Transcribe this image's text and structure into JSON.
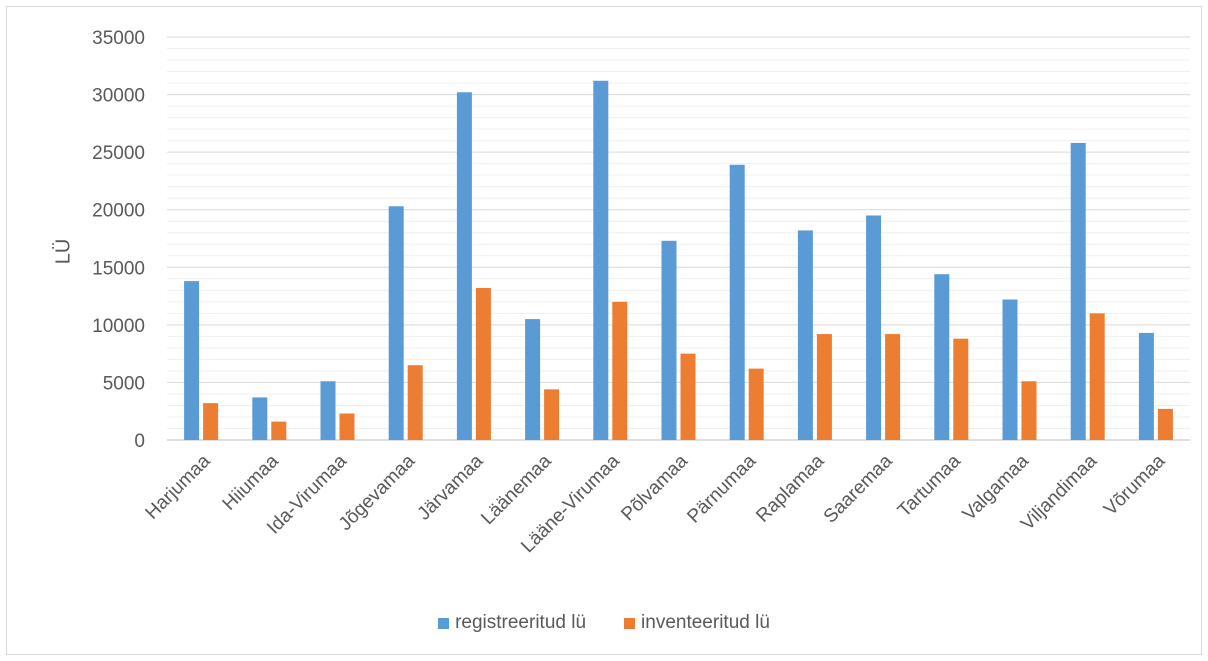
{
  "chart_data": {
    "type": "bar",
    "title": "",
    "xlabel": "",
    "ylabel": "LÜ",
    "ylim": [
      0,
      35000
    ],
    "yticks": [
      0,
      5000,
      10000,
      15000,
      20000,
      25000,
      30000,
      35000
    ],
    "grid": true,
    "legend_position": "bottom",
    "categories": [
      "Harjumaa",
      "Hiiumaa",
      "Ida-Virumaa",
      "Jõgevamaa",
      "Järvamaa",
      "Läänemaa",
      "Lääne-Virumaa",
      "Põlvamaa",
      "Pärnumaa",
      "Raplamaa",
      "Saaremaa",
      "Tartumaa",
      "Valgamaa",
      "Viljandimaa",
      "Võrumaa"
    ],
    "series": [
      {
        "name": "registreeritud lü",
        "color": "#5B9BD5",
        "values": [
          13800,
          3700,
          5100,
          20300,
          30200,
          10500,
          31200,
          17300,
          23900,
          18200,
          19500,
          14400,
          12200,
          25800,
          9300
        ]
      },
      {
        "name": "inventeeritud lü",
        "color": "#ED7D31",
        "values": [
          3200,
          1600,
          2300,
          6500,
          13200,
          4400,
          12000,
          7500,
          6200,
          9200,
          9200,
          8800,
          5100,
          11000,
          2700
        ]
      }
    ]
  }
}
